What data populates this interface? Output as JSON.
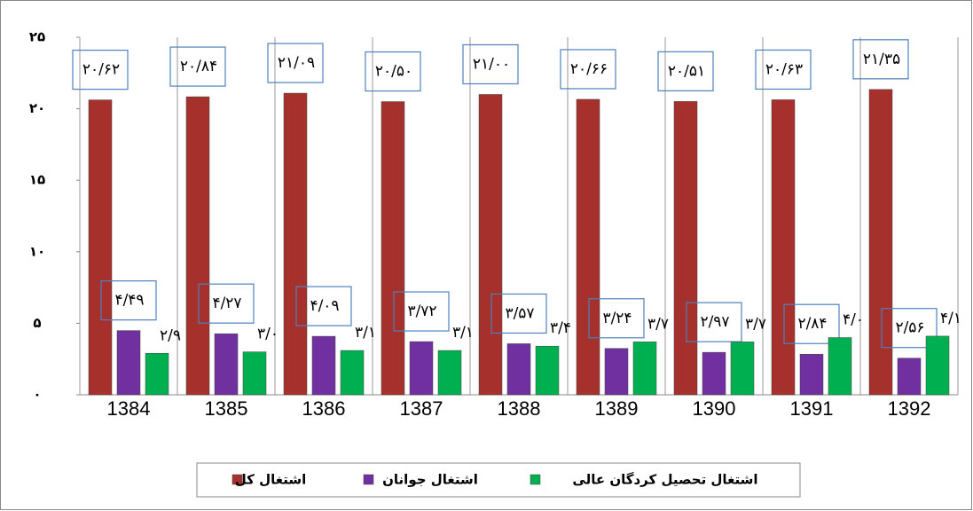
{
  "chart_data": {
    "type": "bar",
    "categories": [
      "1384",
      "1385",
      "1386",
      "1387",
      "1388",
      "1389",
      "1390",
      "1391",
      "1392"
    ],
    "series": [
      {
        "name": "اشتغال کل",
        "color": "#a5302c",
        "values": [
          20.62,
          20.84,
          21.09,
          20.5,
          21.0,
          20.66,
          20.51,
          20.63,
          21.35
        ],
        "value_labels": [
          "۲۰/۶۲",
          "۲۰/۸۴",
          "۲۱/۰۹",
          "۲۰/۵۰",
          "۲۱/۰۰",
          "۲۰/۶۶",
          "۲۰/۵۱",
          "۲۰/۶۳",
          "۲۱/۳۵"
        ]
      },
      {
        "name": "اشتغال جوانان",
        "color": "#7030a0",
        "values": [
          4.49,
          4.27,
          4.09,
          3.72,
          3.57,
          3.24,
          2.97,
          2.84,
          2.56
        ],
        "value_labels": [
          "۴/۴۹",
          "۴/۲۷",
          "۴/۰۹",
          "۳/۷۲",
          "۳/۵۷",
          "۳/۲۴",
          "۲/۹۷",
          "۲/۸۴",
          "۲/۵۶"
        ]
      },
      {
        "name": "اشتغال تحصیل کردگان عالی",
        "color": "#00b050",
        "values": [
          2.9,
          3.0,
          3.1,
          3.1,
          3.4,
          3.7,
          3.7,
          4.0,
          4.1
        ],
        "value_labels": [
          "۲/۹",
          "۳/۰",
          "۳/۱",
          "۳/۱",
          "۳/۴",
          "۳/۷",
          "۳/۷",
          "۴/۰",
          "۴/۱"
        ]
      }
    ],
    "ylim": [
      0,
      25
    ],
    "yticks": [
      {
        "value": 0,
        "label": "۰"
      },
      {
        "value": 5,
        "label": "۵"
      },
      {
        "value": 10,
        "label": "۱۰"
      },
      {
        "value": 15,
        "label": "۱۵"
      },
      {
        "value": 20,
        "label": "۲۰"
      },
      {
        "value": 25,
        "label": "۲۵"
      }
    ],
    "xgrid": true,
    "legend": "bottom"
  }
}
